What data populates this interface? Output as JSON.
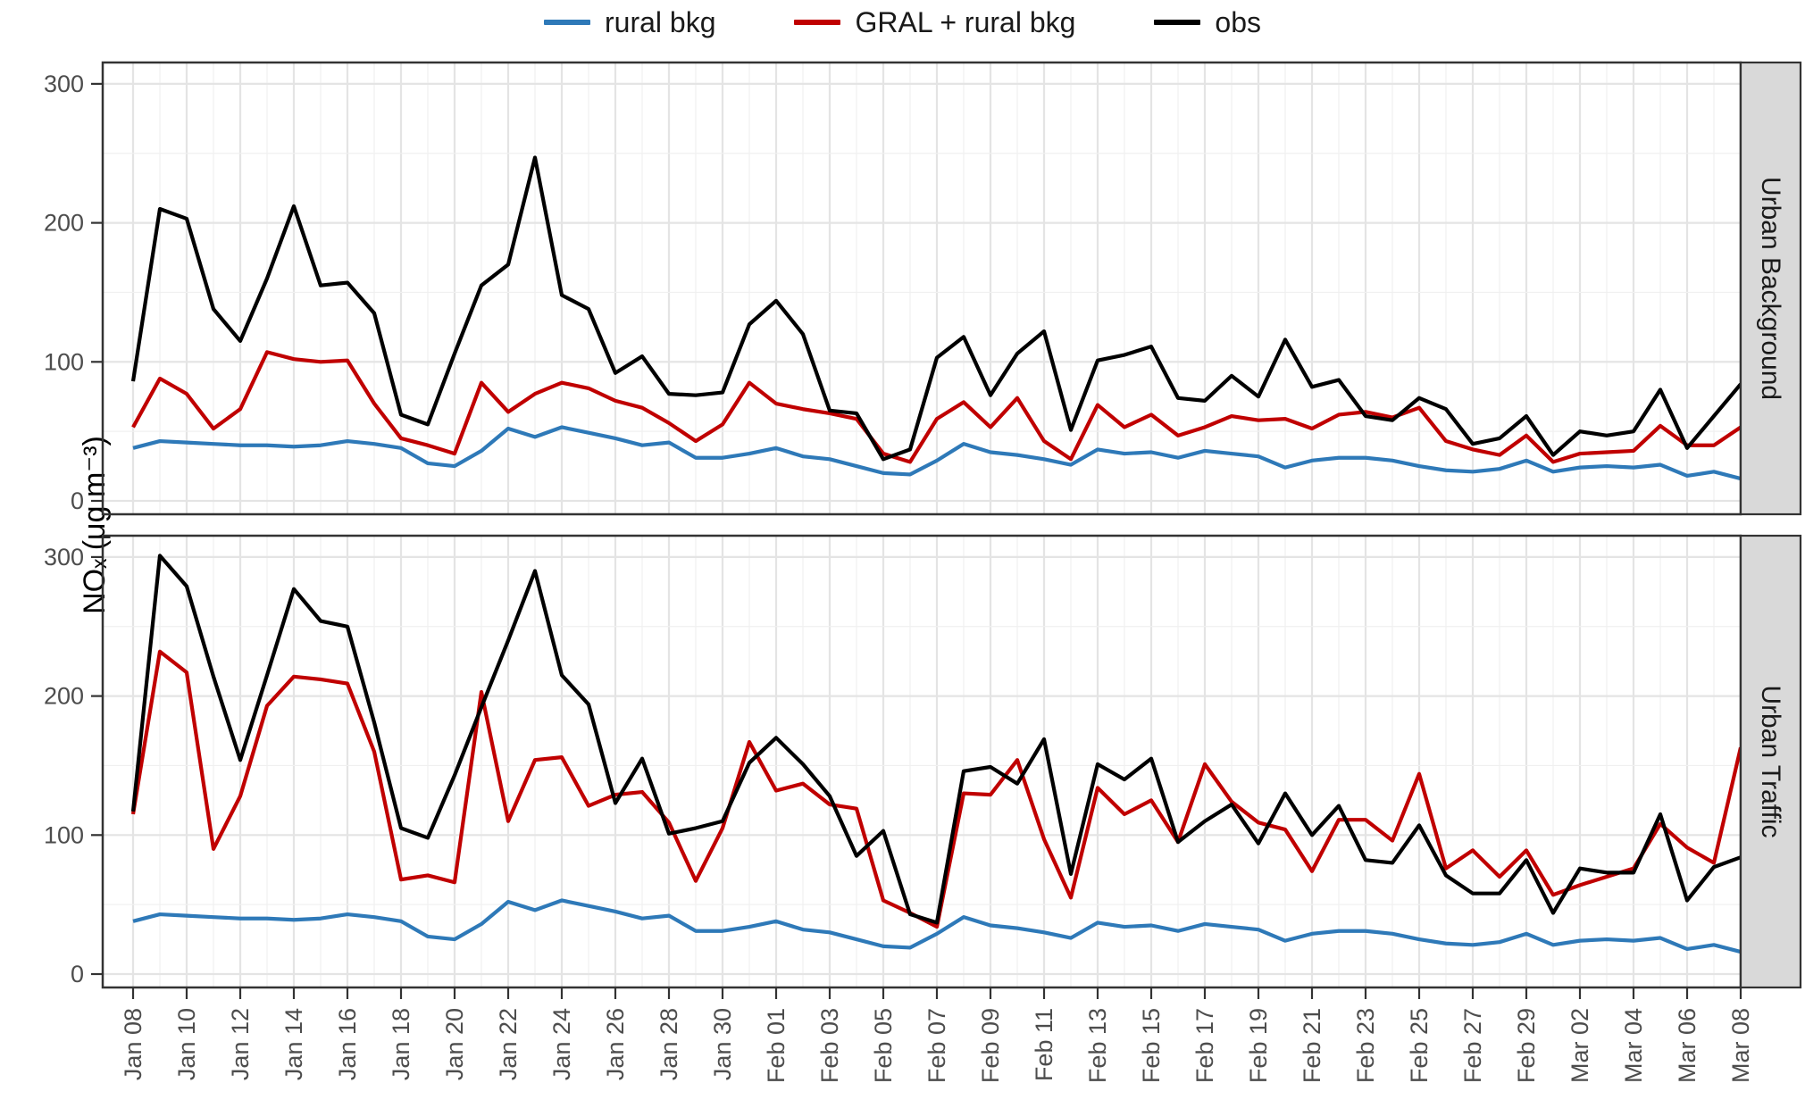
{
  "chart_data": {
    "type": "line",
    "title": "",
    "ylabel": "NOₓ (μg m⁻³)",
    "y_ticks": [
      0,
      100,
      200,
      300
    ],
    "ylim": [
      -10,
      325
    ],
    "grid": "on",
    "legend_position": "top",
    "x_tick_labels": [
      "Jan 08",
      "Jan 10",
      "Jan 12",
      "Jan 14",
      "Jan 16",
      "Jan 18",
      "Jan 20",
      "Jan 22",
      "Jan 24",
      "Jan 26",
      "Jan 28",
      "Jan 30",
      "Feb 01",
      "Feb 03",
      "Feb 05",
      "Feb 07",
      "Feb 09",
      "Feb 11",
      "Feb 13",
      "Feb 15",
      "Feb 17",
      "Feb 19",
      "Feb 21",
      "Feb 23",
      "Feb 25",
      "Feb 27",
      "Feb 29",
      "Mar 02",
      "Mar 04",
      "Mar 06",
      "Mar 08"
    ],
    "n_points": 61,
    "x_start": "Jan 08",
    "x_end": "Mar 08",
    "x_step_days": 1,
    "strip_fill": "#d9d9d9",
    "legend": [
      {
        "label": "rural bkg",
        "color": "#2e79b8"
      },
      {
        "label": "GRAL + rural bkg",
        "color": "#c00000"
      },
      {
        "label": "obs",
        "color": "#000000"
      }
    ],
    "facets": [
      {
        "label": "Urban Background",
        "series": [
          {
            "name": "rural bkg",
            "color": "#2e79b8",
            "values": [
              38,
              43,
              42,
              41,
              40,
              40,
              39,
              40,
              43,
              41,
              38,
              27,
              25,
              36,
              52,
              46,
              53,
              49,
              45,
              40,
              42,
              31,
              31,
              34,
              38,
              32,
              30,
              25,
              20,
              19,
              29,
              41,
              35,
              33,
              30,
              26,
              37,
              34,
              35,
              31,
              36,
              34,
              32,
              24,
              29,
              31,
              31,
              29,
              25,
              22,
              21,
              23,
              29,
              21,
              24,
              25,
              24,
              26,
              18,
              21,
              16
            ]
          },
          {
            "name": "GRAL + rural bkg",
            "color": "#c00000",
            "values": [
              53,
              88,
              77,
              52,
              66,
              107,
              102,
              100,
              101,
              70,
              45,
              40,
              34,
              85,
              64,
              77,
              85,
              81,
              72,
              67,
              56,
              43,
              55,
              85,
              70,
              66,
              63,
              59,
              34,
              28,
              59,
              71,
              53,
              74,
              43,
              30,
              69,
              53,
              62,
              47,
              53,
              61,
              58,
              59,
              52,
              62,
              64,
              60,
              67,
              43,
              37,
              33,
              47,
              28,
              34,
              35,
              36,
              54,
              40,
              40,
              53
            ]
          },
          {
            "name": "obs",
            "color": "#000000",
            "values": [
              86,
              210,
              203,
              138,
              115,
              160,
              212,
              155,
              157,
              135,
              62,
              55,
              106,
              155,
              170,
              247,
              148,
              138,
              92,
              104,
              77,
              76,
              78,
              127,
              144,
              120,
              65,
              63,
              30,
              37,
              103,
              118,
              76,
              106,
              122,
              51,
              101,
              105,
              111,
              74,
              72,
              90,
              75,
              116,
              82,
              87,
              61,
              58,
              74,
              66,
              41,
              45,
              61,
              33,
              50,
              47,
              50,
              80,
              38,
              61,
              84
            ]
          }
        ]
      },
      {
        "label": "Urban Traffic",
        "series": [
          {
            "name": "rural bkg",
            "color": "#2e79b8",
            "values": [
              38,
              43,
              42,
              41,
              40,
              40,
              39,
              40,
              43,
              41,
              38,
              27,
              25,
              36,
              52,
              46,
              53,
              49,
              45,
              40,
              42,
              31,
              31,
              34,
              38,
              32,
              30,
              25,
              20,
              19,
              29,
              41,
              35,
              33,
              30,
              26,
              37,
              34,
              35,
              31,
              36,
              34,
              32,
              24,
              29,
              31,
              31,
              29,
              25,
              22,
              21,
              23,
              29,
              21,
              24,
              25,
              24,
              26,
              18,
              21,
              16
            ]
          },
          {
            "name": "GRAL + rural bkg",
            "color": "#c00000",
            "values": [
              115,
              232,
              217,
              90,
              128,
              193,
              214,
              212,
              209,
              160,
              68,
              71,
              66,
              203,
              110,
              154,
              156,
              121,
              129,
              131,
              109,
              67,
              105,
              167,
              132,
              137,
              122,
              119,
              53,
              44,
              34,
              130,
              129,
              154,
              97,
              55,
              134,
              115,
              125,
              95,
              151,
              124,
              109,
              104,
              74,
              111,
              111,
              96,
              144,
              76,
              89,
              70,
              89,
              57,
              64,
              70,
              76,
              108,
              91,
              80,
              163
            ]
          },
          {
            "name": "obs",
            "color": "#000000",
            "values": [
              117,
              301,
              279,
              214,
              154,
              215,
              277,
              254,
              250,
              181,
              105,
              98,
              143,
              192,
              240,
              290,
              215,
              194,
              123,
              155,
              101,
              105,
              110,
              152,
              170,
              151,
              128,
              85,
              103,
              43,
              37,
              146,
              149,
              137,
              169,
              72,
              151,
              140,
              155,
              95,
              110,
              122,
              94,
              130,
              100,
              121,
              82,
              80,
              107,
              71,
              58,
              58,
              82,
              44,
              76,
              73,
              73,
              115,
              53,
              77,
              84
            ]
          }
        ]
      }
    ]
  }
}
